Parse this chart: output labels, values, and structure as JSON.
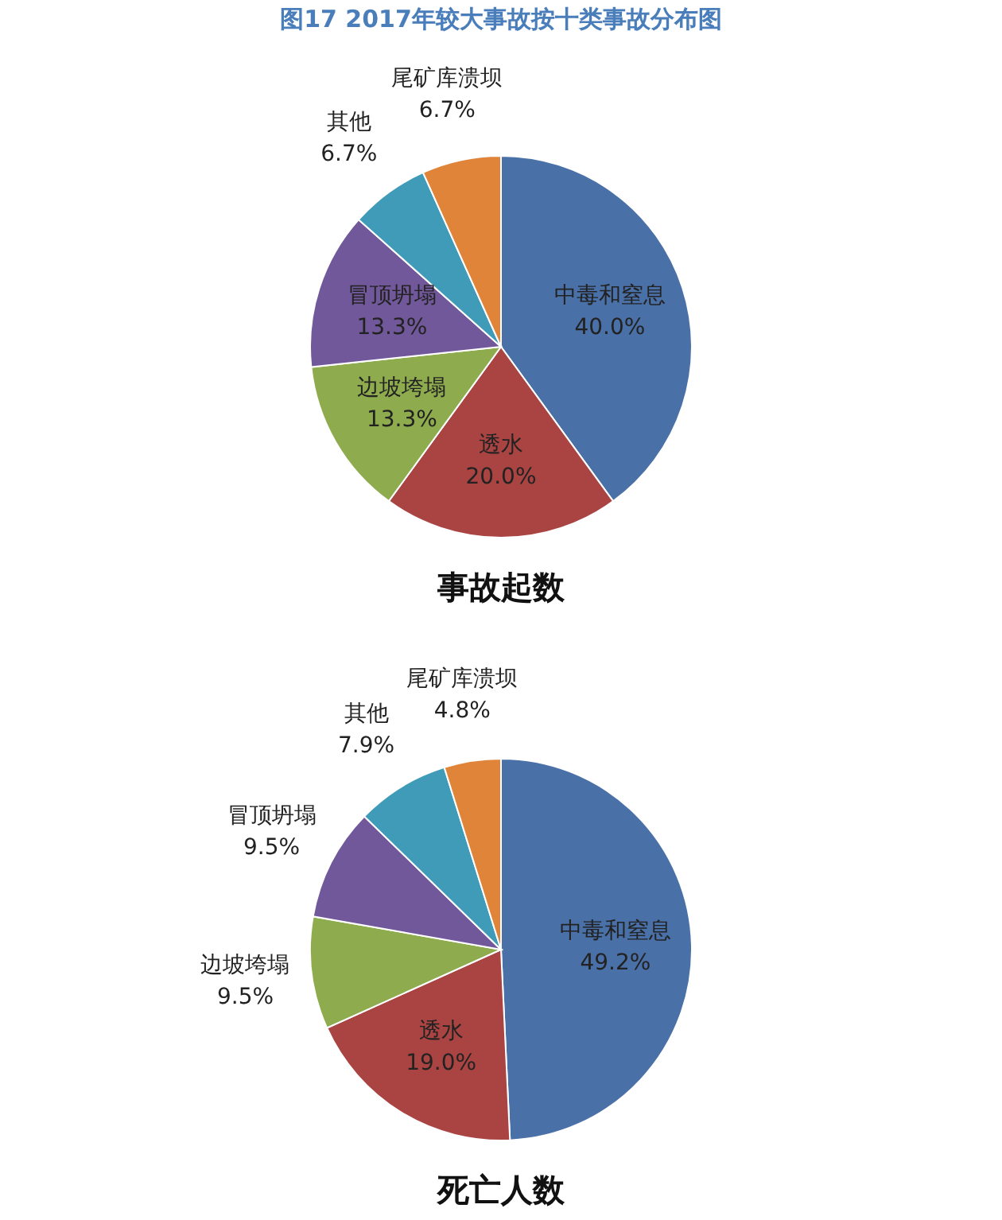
{
  "chart_data": [
    {
      "type": "pie",
      "title": "图17 2017年较大事故按十类事故分布图",
      "annotations": [
        "事故起数"
      ],
      "categories": [
        "中毒和窒息",
        "透水",
        "边坡垮塌",
        "冒顶坍塌",
        "其他",
        "尾矿库溃坝"
      ],
      "values": [
        40.0,
        20.0,
        13.3,
        13.3,
        6.7,
        6.7
      ],
      "value_labels": [
        "40.0%",
        "20.0%",
        "13.3%",
        "13.3%",
        "6.7%",
        "6.7%"
      ],
      "colors": [
        "#4a70a8",
        "#aa4442",
        "#8eab4e",
        "#71589a",
        "#3f9bb8",
        "#e0843a"
      ]
    },
    {
      "type": "pie",
      "annotations": [
        "死亡人数"
      ],
      "categories": [
        "中毒和窒息",
        "透水",
        "边坡垮塌",
        "冒顶坍塌",
        "其他",
        "尾矿库溃坝"
      ],
      "values": [
        49.2,
        19.0,
        9.5,
        9.5,
        7.9,
        4.8
      ],
      "value_labels": [
        "49.2%",
        "19.0%",
        "9.5%",
        "9.5%",
        "7.9%",
        "4.8%"
      ],
      "colors": [
        "#4a70a8",
        "#aa4442",
        "#8eab4e",
        "#71589a",
        "#3f9bb8",
        "#e0843a"
      ]
    }
  ]
}
